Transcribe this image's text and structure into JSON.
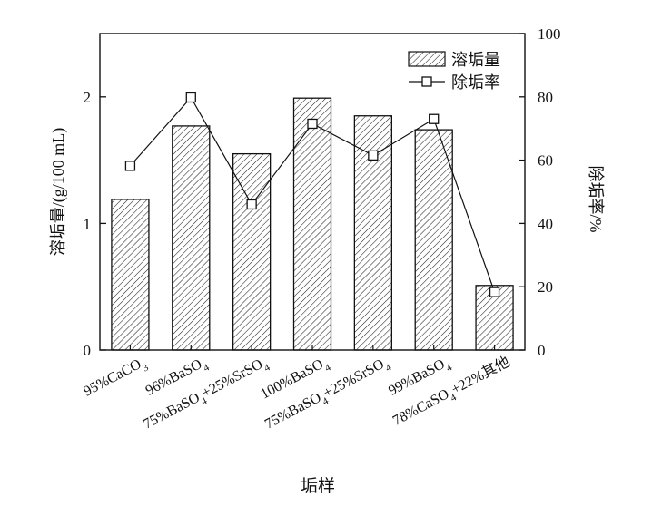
{
  "chart_data": {
    "type": "bar+line",
    "categories": [
      "95%CaCO",
      "96%BaSO",
      "75%BaSO",
      "100%BaSO",
      "75%BaSO",
      "99%BaSO",
      "78%CaSO"
    ],
    "category_subscripts": [
      "3",
      "4",
      "4",
      "4",
      "4",
      "4",
      "4"
    ],
    "category_suffixes": [
      "",
      "",
      "+25%SrSO",
      "",
      "+25%SrSO",
      "",
      "+22%其他"
    ],
    "category_suffix_subscripts": [
      "",
      "",
      "4",
      "",
      "4",
      "",
      ""
    ],
    "series": [
      {
        "name": "溶垢量",
        "type": "bar",
        "axis": "left",
        "values": [
          1.19,
          1.77,
          1.55,
          1.99,
          1.85,
          1.74,
          0.51
        ]
      },
      {
        "name": "除垢率",
        "type": "line",
        "axis": "right",
        "values": [
          58.2,
          79.8,
          46.0,
          71.5,
          61.5,
          73.0,
          18.3
        ]
      }
    ],
    "xlabel": "垢样",
    "ylabel": "溶垢量/(g/100 mL)",
    "ylabel_right": "除垢率/%",
    "ylim": [
      0,
      2.5
    ],
    "ylim_right": [
      0,
      100
    ],
    "yticks": [
      0,
      1,
      2
    ],
    "yticks_right": [
      0,
      20,
      40,
      60,
      80,
      100
    ],
    "legend_position": "top-right",
    "grid": false
  }
}
